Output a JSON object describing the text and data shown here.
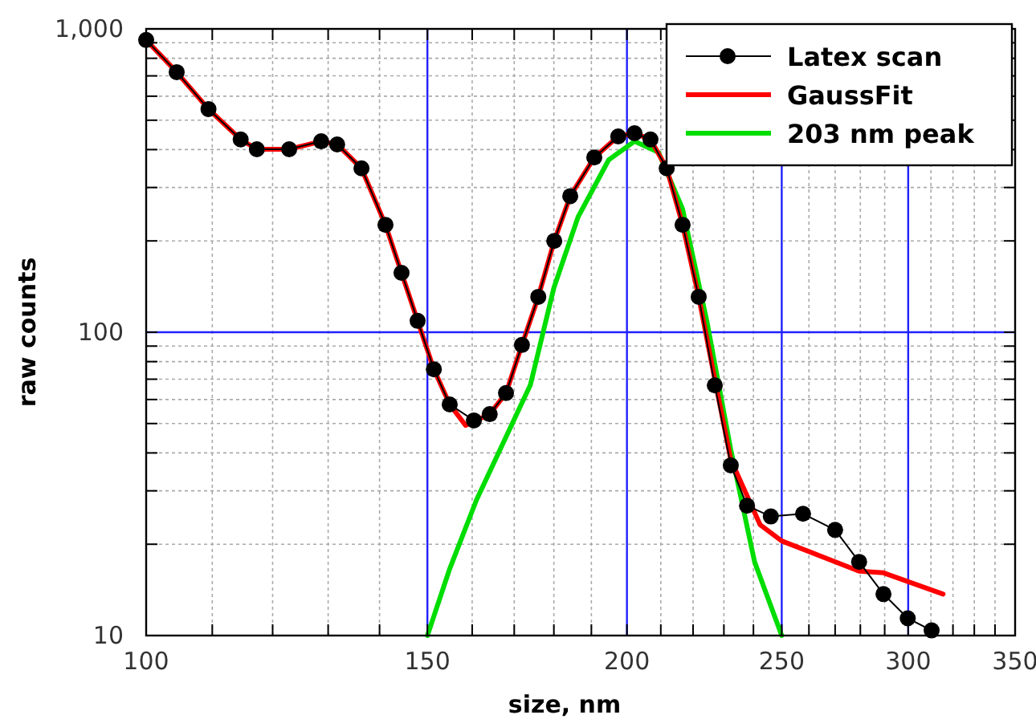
{
  "chart_data": {
    "type": "line",
    "xlabel": "size, nm",
    "ylabel": "raw counts",
    "log": "xy",
    "grid": true,
    "legend": "top right",
    "xlim": [
      100,
      350
    ],
    "ylim": [
      10,
      1000
    ],
    "xticks": [
      100,
      {
        "value": 110,
        "label": null
      },
      {
        "value": 120,
        "label": null
      },
      {
        "value": 130,
        "label": null
      },
      {
        "value": 140,
        "label": null
      },
      150,
      {
        "value": 160,
        "label": null
      },
      {
        "value": 170,
        "label": null
      },
      {
        "value": 180,
        "label": null
      },
      {
        "value": 190,
        "label": null
      },
      200,
      {
        "value": 210,
        "label": null
      },
      {
        "value": 220,
        "label": null
      },
      {
        "value": 230,
        "label": null
      },
      {
        "value": 240,
        "label": null
      },
      250,
      {
        "value": 260,
        "label": null
      },
      {
        "value": 270,
        "label": null
      },
      {
        "value": 280,
        "label": null
      },
      {
        "value": 290,
        "label": null
      },
      300,
      {
        "value": 310,
        "label": null
      },
      {
        "value": 320,
        "label": null
      },
      {
        "value": 330,
        "label": null
      },
      {
        "value": 340,
        "label": null
      },
      350
    ],
    "yticks": [
      10,
      {
        "value": 20,
        "label": null
      },
      {
        "value": 30,
        "label": null
      },
      {
        "value": 40,
        "label": null
      },
      {
        "value": 50,
        "label": null
      },
      {
        "value": 60,
        "label": null
      },
      {
        "value": 70,
        "label": null
      },
      {
        "value": 80,
        "label": null
      },
      {
        "value": 90,
        "label": null
      },
      100,
      {
        "value": 200,
        "label": null
      },
      {
        "value": 300,
        "label": null
      },
      {
        "value": 400,
        "label": null
      },
      {
        "value": 500,
        "label": null
      },
      {
        "value": 600,
        "label": null
      },
      {
        "value": 700,
        "label": null
      },
      {
        "value": 800,
        "label": null
      },
      {
        "value": 900,
        "label": null
      },
      {
        "value": 1000,
        "label": "1,000"
      }
    ],
    "series": [
      {
        "name": "Latex scan",
        "color": "#000000",
        "marker": "circle",
        "x": [
          100,
          104.5,
          109.4,
          114.6,
          117.3,
          122.9,
          128.7,
          131.7,
          136.4,
          141.2,
          144.5,
          147.9,
          151.4,
          154.9,
          160.4,
          164.1,
          168,
          171.9,
          176,
          180.1,
          184.3,
          190.8,
          197.5,
          202.2,
          206.9,
          211.8,
          216.7,
          221.8,
          227,
          232.3,
          237.8,
          246.1,
          257.8,
          270,
          279.5,
          289.5,
          299.8,
          310.3
        ],
        "values": [
          919,
          720,
          544,
          432,
          401,
          401,
          426,
          416,
          347,
          226,
          157,
          109,
          75.5,
          57.8,
          51.2,
          53.7,
          63,
          90.8,
          130.8,
          200,
          281,
          377,
          442,
          453,
          432,
          347,
          226,
          130.8,
          66.8,
          36.4,
          26.8,
          24.7,
          25.2,
          22.3,
          17.5,
          13.7,
          11.4,
          10.4
        ]
      },
      {
        "name": "GaussFit",
        "color": "#ff0000",
        "marker": "none",
        "x": [
          100,
          104.5,
          109.4,
          114.6,
          117.3,
          122.9,
          128.7,
          131.7,
          136.4,
          141.2,
          144.5,
          147.9,
          151.4,
          154.9,
          158.5,
          164.1,
          168,
          171.9,
          176,
          180.1,
          184.3,
          190.8,
          197.5,
          202.2,
          206.9,
          211.8,
          216.7,
          221.8,
          227,
          232.3,
          242.3,
          250,
          279.5,
          289.5,
          315.5
        ],
        "values": [
          919,
          720,
          544,
          432,
          401,
          401,
          426,
          416,
          347,
          226,
          157,
          109,
          75.5,
          57.8,
          49.3,
          53.7,
          63,
          90.8,
          130.8,
          200,
          281,
          377,
          442,
          453,
          432,
          347,
          226,
          130.8,
          70,
          38,
          23.2,
          20.5,
          16.3,
          16.1,
          13.7
        ]
      },
      {
        "name": "203 nm peak",
        "color": "#00dd00",
        "marker": "none",
        "x": [
          150,
          154.9,
          161,
          174,
          180,
          186.4,
          194.8,
          202.2,
          209.3,
          216.7,
          224.4,
          232.3,
          240.4,
          250
        ],
        "values": [
          10,
          16.6,
          28,
          67,
          140,
          240,
          370,
          426,
          392,
          255,
          109,
          41,
          17.5,
          10
        ]
      }
    ]
  }
}
